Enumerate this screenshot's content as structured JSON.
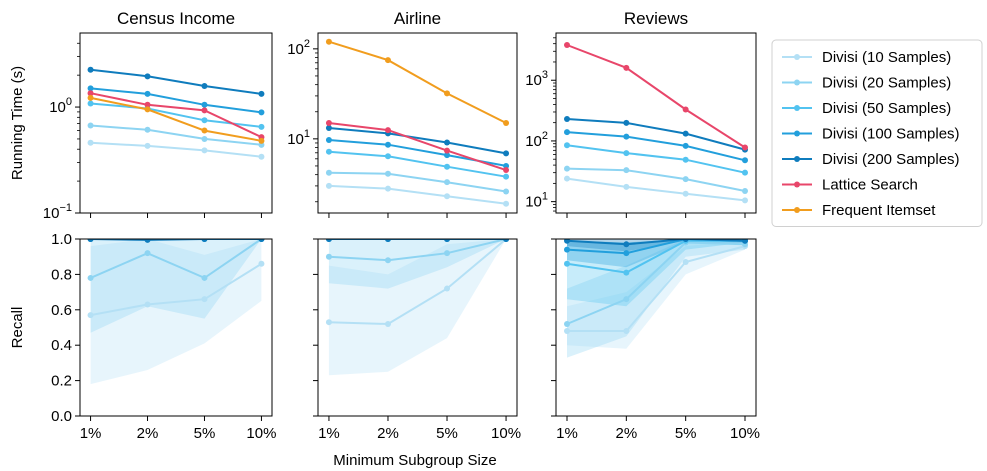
{
  "figure": {
    "xlabel": "Minimum Subgroup Size",
    "categories": [
      "1%",
      "2%",
      "5%",
      "10%"
    ],
    "legend_position": "right"
  },
  "series_styles": [
    {
      "name": "Divisi (10 Samples)",
      "color": "#b4e0f5"
    },
    {
      "name": "Divisi (20 Samples)",
      "color": "#8dd4f2"
    },
    {
      "name": "Divisi (50 Samples)",
      "color": "#52c3f0"
    },
    {
      "name": "Divisi (100 Samples)",
      "color": "#229fdc"
    },
    {
      "name": "Divisi (200 Samples)",
      "color": "#0f7cbd"
    },
    {
      "name": "Lattice Search",
      "color": "#e8466a"
    },
    {
      "name": "Frequent Itemset",
      "color": "#f19d1e"
    }
  ],
  "chart_data": [
    {
      "type": "line",
      "title": "Census Income",
      "ylabel": "Running Time (s)",
      "yscale": "log",
      "ylim": [
        0.1,
        5
      ],
      "yticks": [
        {
          "v": 0.1,
          "base": "10",
          "exp": "−1"
        },
        {
          "v": 1,
          "base": "10",
          "exp": "0"
        }
      ],
      "categories": [
        "1%",
        "2%",
        "5%",
        "10%"
      ],
      "series": [
        {
          "name": "Divisi (10 Samples)",
          "values": [
            0.46,
            0.43,
            0.39,
            0.34
          ]
        },
        {
          "name": "Divisi (20 Samples)",
          "values": [
            0.67,
            0.61,
            0.5,
            0.44
          ]
        },
        {
          "name": "Divisi (50 Samples)",
          "values": [
            1.08,
            0.97,
            0.75,
            0.65
          ]
        },
        {
          "name": "Divisi (100 Samples)",
          "values": [
            1.5,
            1.33,
            1.05,
            0.89
          ]
        },
        {
          "name": "Divisi (200 Samples)",
          "values": [
            2.25,
            1.95,
            1.58,
            1.33
          ]
        },
        {
          "name": "Lattice Search",
          "values": [
            1.35,
            1.05,
            0.93,
            0.52
          ]
        },
        {
          "name": "Frequent Itemset",
          "values": [
            1.22,
            0.95,
            0.6,
            0.48
          ]
        }
      ]
    },
    {
      "type": "line",
      "title": "Airline",
      "yscale": "log",
      "ylim": [
        1.5,
        150
      ],
      "yticks": [
        {
          "v": 10,
          "base": "10",
          "exp": "1"
        },
        {
          "v": 100,
          "base": "10",
          "exp": "2"
        }
      ],
      "categories": [
        "1%",
        "2%",
        "5%",
        "10%"
      ],
      "series": [
        {
          "name": "Divisi (10 Samples)",
          "values": [
            3.0,
            2.8,
            2.3,
            1.9
          ]
        },
        {
          "name": "Divisi (20 Samples)",
          "values": [
            4.2,
            4.1,
            3.3,
            2.6
          ]
        },
        {
          "name": "Divisi (50 Samples)",
          "values": [
            7.2,
            6.4,
            4.9,
            3.8
          ]
        },
        {
          "name": "Divisi (100 Samples)",
          "values": [
            9.7,
            8.6,
            6.6,
            5.0
          ]
        },
        {
          "name": "Divisi (200 Samples)",
          "values": [
            13.2,
            11.5,
            9.1,
            6.9
          ]
        },
        {
          "name": "Lattice Search",
          "values": [
            15.0,
            12.5,
            7.4,
            4.5
          ]
        },
        {
          "name": "Frequent Itemset",
          "values": [
            120,
            75,
            32,
            15
          ]
        }
      ]
    },
    {
      "type": "line",
      "title": "Reviews",
      "yscale": "log",
      "ylim": [
        6.5,
        6000
      ],
      "yticks": [
        {
          "v": 10,
          "base": "10",
          "exp": "1"
        },
        {
          "v": 100,
          "base": "10",
          "exp": "2"
        },
        {
          "v": 1000,
          "base": "10",
          "exp": "3"
        }
      ],
      "categories": [
        "1%",
        "2%",
        "5%",
        "10%"
      ],
      "series": [
        {
          "name": "Divisi (10 Samples)",
          "values": [
            24,
            17.5,
            13.5,
            10.5
          ]
        },
        {
          "name": "Divisi (20 Samples)",
          "values": [
            35,
            33,
            23.5,
            15
          ]
        },
        {
          "name": "Divisi (50 Samples)",
          "values": [
            85,
            63,
            49,
            30
          ]
        },
        {
          "name": "Divisi (100 Samples)",
          "values": [
            140,
            118,
            83,
            48
          ]
        },
        {
          "name": "Divisi (200 Samples)",
          "values": [
            230,
            198,
            132,
            72
          ]
        },
        {
          "name": "Lattice Search",
          "values": [
            3800,
            1600,
            330,
            78
          ]
        }
      ]
    },
    {
      "type": "line",
      "ylabel": "Recall",
      "yscale": "linear",
      "ylim": [
        0,
        1
      ],
      "yticks": [
        {
          "v": 0,
          "label": "0.0"
        },
        {
          "v": 0.2,
          "label": "0.2"
        },
        {
          "v": 0.4,
          "label": "0.4"
        },
        {
          "v": 0.6,
          "label": "0.6"
        },
        {
          "v": 0.8,
          "label": "0.8"
        },
        {
          "v": 1.0,
          "label": "1.0"
        }
      ],
      "categories": [
        "1%",
        "2%",
        "5%",
        "10%"
      ],
      "series": [
        {
          "name": "Divisi (10 Samples)",
          "values": [
            0.57,
            0.63,
            0.66,
            0.86
          ],
          "band_low": [
            0.18,
            0.26,
            0.41,
            0.65
          ],
          "band_high": [
            0.96,
            1.0,
            0.91,
            1.0
          ]
        },
        {
          "name": "Divisi (20 Samples)",
          "values": [
            0.78,
            0.92,
            0.78,
            1.0
          ],
          "band_low": [
            0.47,
            0.62,
            0.55,
            1.0
          ],
          "band_high": [
            1.0,
            1.0,
            1.0,
            1.0
          ]
        },
        {
          "name": "Divisi (50 Samples)",
          "values": [
            1.0,
            1.0,
            1.0,
            1.0
          ]
        },
        {
          "name": "Divisi (100 Samples)",
          "values": [
            1.0,
            1.0,
            1.0,
            1.0
          ]
        },
        {
          "name": "Divisi (200 Samples)",
          "values": [
            1.0,
            0.995,
            1.0,
            1.0
          ]
        }
      ]
    },
    {
      "type": "line",
      "yscale": "linear",
      "ylim": [
        0,
        1
      ],
      "yticks": [],
      "categories": [
        "1%",
        "2%",
        "5%",
        "10%"
      ],
      "series": [
        {
          "name": "Divisi (10 Samples)",
          "values": [
            0.53,
            0.52,
            0.72,
            1.0
          ],
          "band_low": [
            0.23,
            0.25,
            0.44,
            1.0
          ],
          "band_high": [
            0.85,
            0.8,
            0.97,
            1.0
          ]
        },
        {
          "name": "Divisi (20 Samples)",
          "values": [
            0.9,
            0.88,
            0.92,
            1.0
          ],
          "band_low": [
            0.75,
            0.72,
            0.84,
            1.0
          ],
          "band_high": [
            1.0,
            1.0,
            1.0,
            1.0
          ]
        },
        {
          "name": "Divisi (50 Samples)",
          "values": [
            1.0,
            1.0,
            1.0,
            1.0
          ]
        },
        {
          "name": "Divisi (100 Samples)",
          "values": [
            1.0,
            1.0,
            1.0,
            1.0
          ]
        },
        {
          "name": "Divisi (200 Samples)",
          "values": [
            1.0,
            1.0,
            1.0,
            1.0
          ]
        }
      ]
    },
    {
      "type": "line",
      "yscale": "linear",
      "ylim": [
        0,
        1
      ],
      "yticks": [],
      "categories": [
        "1%",
        "2%",
        "5%",
        "10%"
      ],
      "series": [
        {
          "name": "Divisi (10 Samples)",
          "values": [
            0.48,
            0.48,
            0.87,
            0.96
          ],
          "band_low": [
            0.4,
            0.38,
            0.8,
            0.94
          ],
          "band_high": [
            0.62,
            0.7,
            0.96,
            0.99
          ]
        },
        {
          "name": "Divisi (20 Samples)",
          "values": [
            0.52,
            0.66,
            0.98,
            0.97
          ],
          "band_low": [
            0.33,
            0.45,
            0.9,
            0.94
          ],
          "band_high": [
            0.72,
            0.85,
            1.0,
            1.0
          ]
        },
        {
          "name": "Divisi (50 Samples)",
          "values": [
            0.86,
            0.81,
            0.99,
            0.99
          ],
          "band_low": [
            0.66,
            0.62,
            0.94,
            0.98
          ],
          "band_high": [
            0.99,
            0.98,
            1.0,
            1.0
          ]
        },
        {
          "name": "Divisi (100 Samples)",
          "values": [
            0.94,
            0.92,
            1.0,
            0.99
          ],
          "band_low": [
            0.88,
            0.84,
            0.98,
            0.98
          ],
          "band_high": [
            0.99,
            0.98,
            1.0,
            1.0
          ]
        },
        {
          "name": "Divisi (200 Samples)",
          "values": [
            0.99,
            0.97,
            1.0,
            0.99
          ],
          "band_low": [
            0.96,
            0.93,
            0.99,
            0.98
          ],
          "band_high": [
            1.0,
            1.0,
            1.0,
            1.0
          ]
        }
      ]
    }
  ]
}
